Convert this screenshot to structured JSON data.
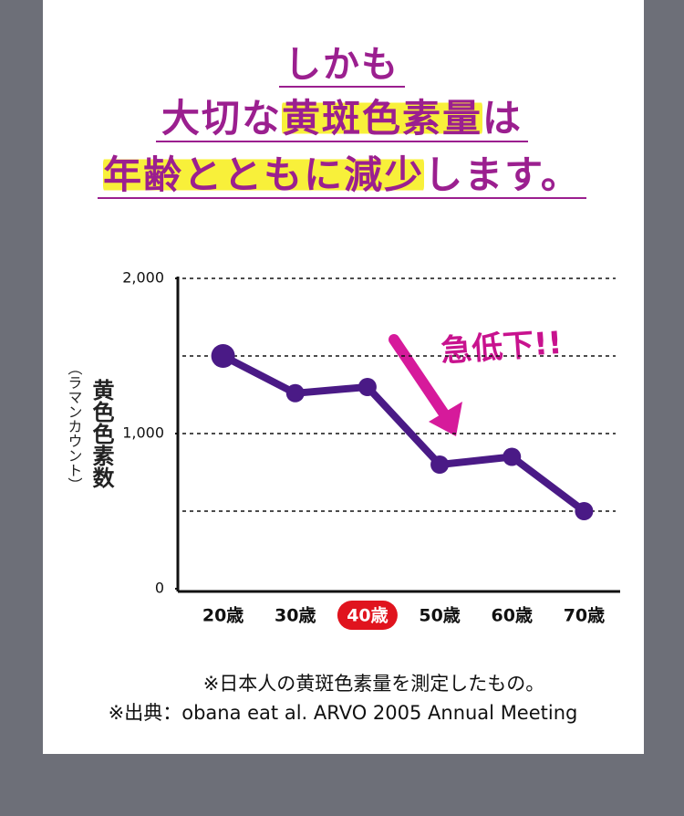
{
  "headline": [
    [
      "しかも"
    ],
    [
      "大切な",
      "黄斑色素量",
      "は"
    ],
    [
      "年齢とともに減少",
      "します。"
    ]
  ],
  "headline_highlight": [
    [
      false
    ],
    [
      false,
      true,
      false
    ],
    [
      true,
      false
    ]
  ],
  "chart_data": {
    "type": "line",
    "y_label": "黄色色素数",
    "y_label_sub": "（ラマンカウント）",
    "categories": [
      "20歳",
      "30歳",
      "40歳",
      "50歳",
      "60歳",
      "70歳"
    ],
    "values": [
      1500,
      1260,
      1300,
      800,
      850,
      500
    ],
    "color": "#4a1a86",
    "ylim": [
      0,
      2000
    ],
    "yticks": [
      0,
      {
        "value": 1000,
        "label": "1,000"
      },
      {
        "value": 2000,
        "label": "2,000"
      }
    ],
    "grid_lines": [
      500,
      1000,
      1500,
      2000
    ],
    "highlight_category": 2,
    "annotation": "急低下!!"
  },
  "footnotes": [
    "※日本人の黄斑色素量を測定したもの。",
    "※出典：obana eat al. ARVO 2005 Annual Meeting"
  ]
}
